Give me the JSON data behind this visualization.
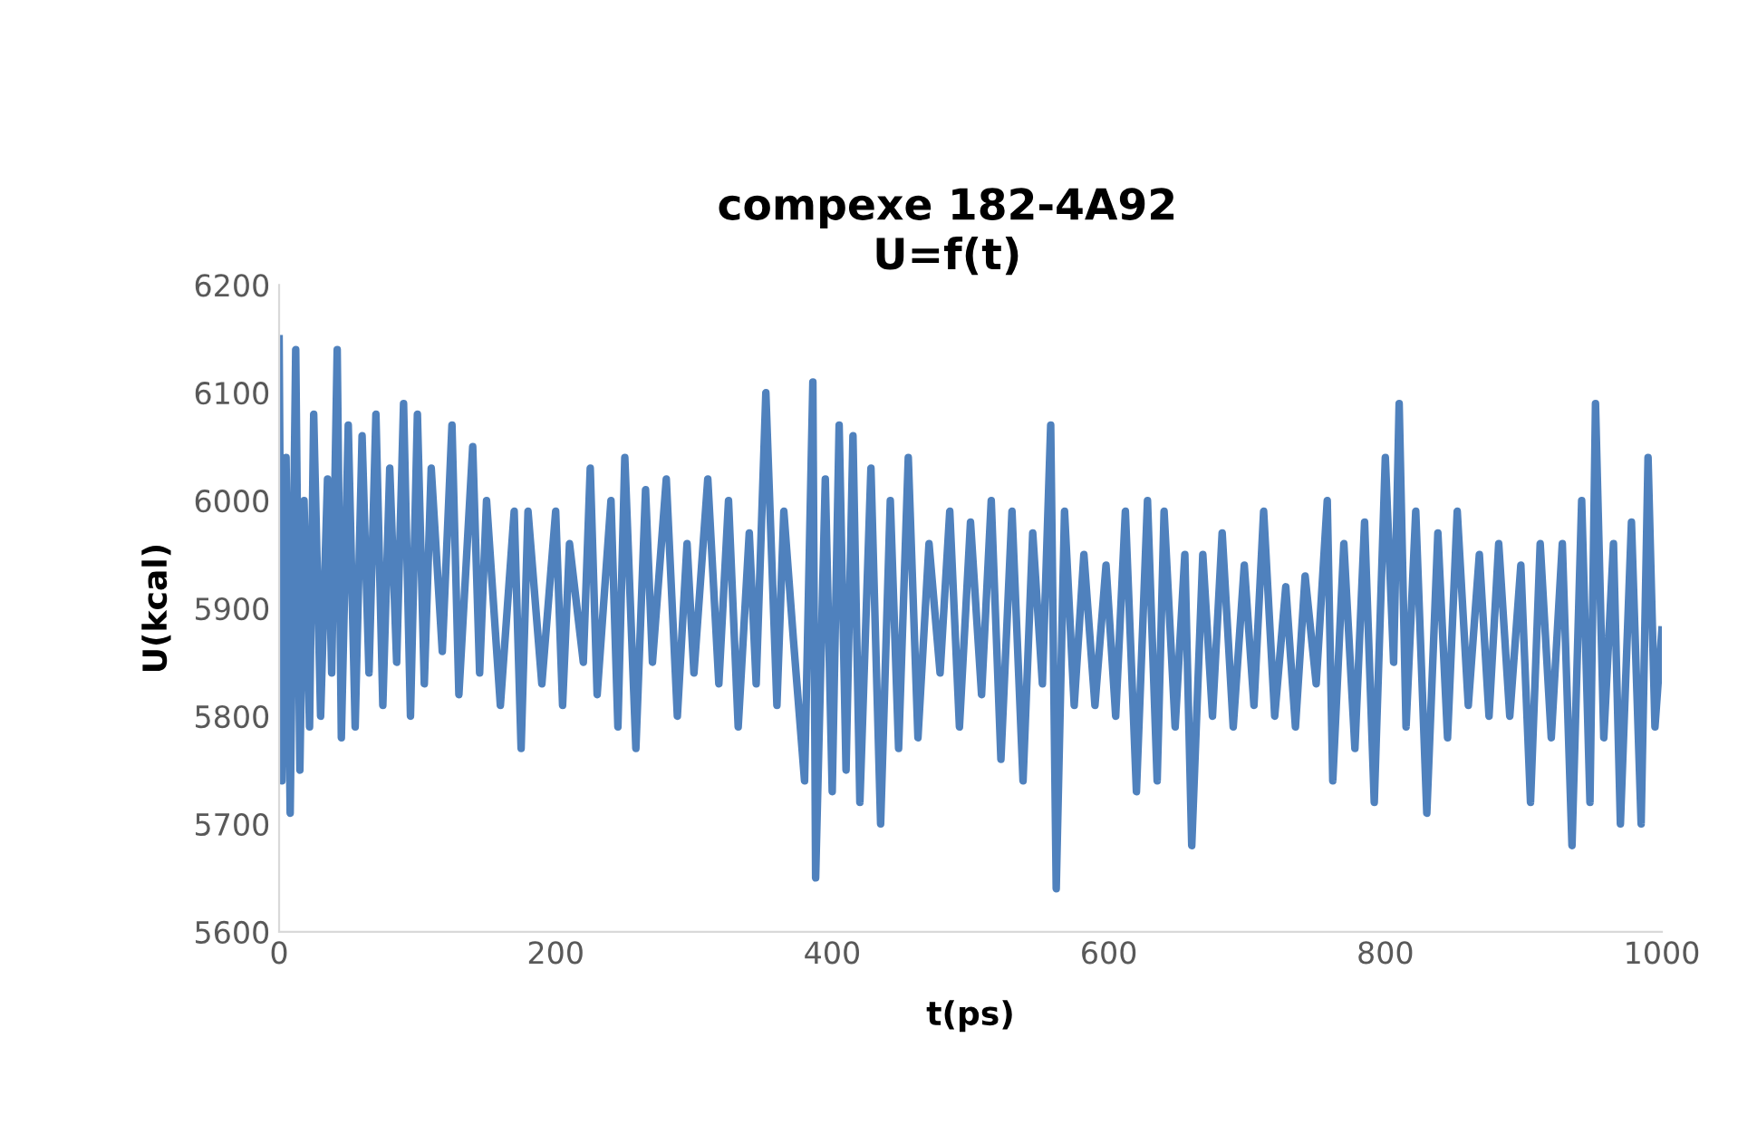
{
  "chart_data": {
    "type": "line",
    "title": "compexe 182-4A92\nU=f(t)",
    "xlabel": "t(ps)",
    "ylabel": "U(kcal)",
    "xlim": [
      0,
      1000
    ],
    "xticks": [
      0,
      200,
      400,
      600,
      800,
      1000
    ],
    "ylim": [
      5600,
      6200
    ],
    "yticks": [
      5600,
      5700,
      5800,
      5900,
      6000,
      6100,
      6200
    ],
    "grid": false,
    "marker": "none",
    "line_style": "solid",
    "series": [
      {
        "color": "#4f81bd",
        "x": [
          0,
          2,
          5,
          8,
          12,
          15,
          18,
          22,
          25,
          30,
          35,
          38,
          42,
          45,
          50,
          55,
          60,
          65,
          70,
          75,
          80,
          85,
          90,
          95,
          100,
          105,
          110,
          118,
          125,
          130,
          140,
          145,
          150,
          160,
          170,
          175,
          180,
          190,
          200,
          205,
          210,
          220,
          225,
          230,
          240,
          245,
          250,
          258,
          265,
          270,
          280,
          288,
          295,
          300,
          310,
          318,
          325,
          332,
          340,
          345,
          352,
          360,
          365,
          372,
          380,
          386,
          388,
          395,
          400,
          405,
          410,
          415,
          420,
          428,
          435,
          442,
          448,
          455,
          462,
          470,
          478,
          485,
          492,
          500,
          508,
          515,
          522,
          530,
          538,
          545,
          552,
          558,
          562,
          568,
          575,
          582,
          590,
          598,
          605,
          612,
          620,
          628,
          635,
          640,
          648,
          655,
          660,
          668,
          675,
          682,
          690,
          698,
          705,
          712,
          720,
          728,
          735,
          742,
          750,
          758,
          762,
          770,
          778,
          785,
          792,
          800,
          806,
          810,
          815,
          822,
          830,
          838,
          845,
          852,
          860,
          868,
          875,
          882,
          890,
          898,
          905,
          912,
          920,
          928,
          935,
          942,
          948,
          952,
          958,
          965,
          970,
          978,
          985,
          990,
          995,
          1000
        ],
        "values": [
          6150,
          5740,
          6040,
          5710,
          6140,
          5750,
          6000,
          5790,
          6080,
          5800,
          6020,
          5840,
          6140,
          5780,
          6070,
          5790,
          6060,
          5840,
          6080,
          5810,
          6030,
          5850,
          6090,
          5800,
          6080,
          5830,
          6030,
          5860,
          6070,
          5820,
          6050,
          5840,
          6000,
          5810,
          5990,
          5770,
          5990,
          5830,
          5990,
          5810,
          5960,
          5850,
          6030,
          5820,
          6000,
          5790,
          6040,
          5770,
          6010,
          5850,
          6020,
          5800,
          5960,
          5840,
          6020,
          5830,
          6000,
          5790,
          5970,
          5830,
          6100,
          5810,
          5990,
          5870,
          5740,
          6110,
          5650,
          6020,
          5730,
          6070,
          5750,
          6060,
          5720,
          6030,
          5700,
          6000,
          5770,
          6040,
          5780,
          5960,
          5840,
          5990,
          5790,
          5980,
          5820,
          6000,
          5760,
          5990,
          5740,
          5970,
          5830,
          6070,
          5640,
          5990,
          5810,
          5950,
          5810,
          5940,
          5800,
          5990,
          5730,
          6000,
          5740,
          5990,
          5790,
          5950,
          5680,
          5950,
          5800,
          5970,
          5790,
          5940,
          5810,
          5990,
          5800,
          5920,
          5790,
          5930,
          5830,
          6000,
          5740,
          5960,
          5770,
          5980,
          5720,
          6040,
          5850,
          6090,
          5790,
          5990,
          5710,
          5970,
          5780,
          5990,
          5810,
          5950,
          5800,
          5960,
          5800,
          5940,
          5720,
          5960,
          5780,
          5960,
          5680,
          6000,
          5720,
          6090,
          5780,
          5960,
          5700,
          5980,
          5700,
          6040,
          5790,
          5880
        ]
      }
    ]
  }
}
